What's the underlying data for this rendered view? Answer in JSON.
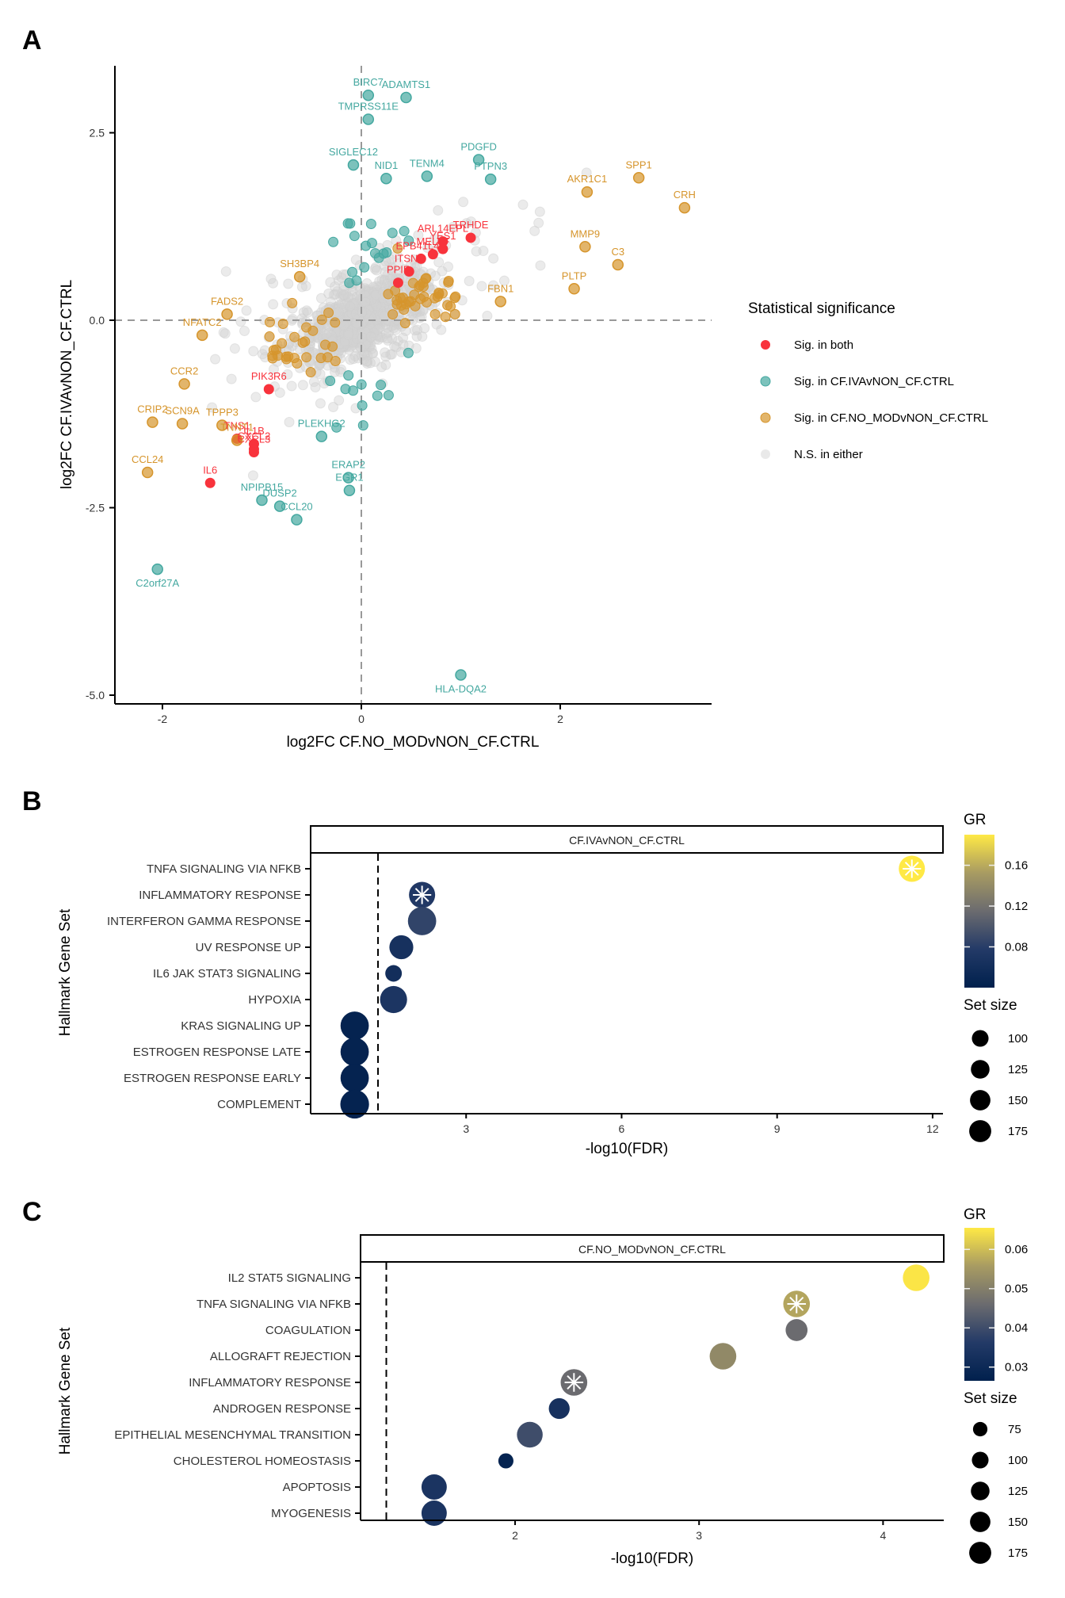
{
  "figure": {
    "panel_letters": [
      "A",
      "B",
      "C"
    ]
  },
  "colors": {
    "sig_both": "#F8333C",
    "sig_iva": "#44A8A0",
    "sig_nomod": "#D6952C",
    "ns": "#D3D3D3",
    "gr_low": "#00204D",
    "gr_mid": "#7C7B78",
    "gr_high": "#FFE945"
  },
  "chart_data": [
    {
      "id": "panel-a",
      "type": "scatter",
      "title": "",
      "xlabel": "log2FC CF.NO_MODvNON_CF.CTRL",
      "ylabel": "log2FC CF.IVAvNON_CF.CTRL",
      "xlim": [
        -2.5,
        3.5
      ],
      "ylim": [
        -5.1,
        3.4
      ],
      "xticks": [
        -2,
        0,
        2
      ],
      "xtick_labels": [
        "-2",
        "0",
        "2"
      ],
      "yticks": [
        2.5,
        0.0,
        -2.5,
        -5.0
      ],
      "ytick_labels": [
        "2.5",
        "0.0",
        "-2.5",
        "-5.0"
      ],
      "reference_lines": {
        "x": 0,
        "y": 0,
        "style": "dashed"
      },
      "grid": false,
      "legend": {
        "title": "Statistical significance",
        "position": "right",
        "entries": [
          {
            "key": "both",
            "label": "Sig. in both"
          },
          {
            "key": "iva",
            "label": "Sig. in CF.IVAvNON_CF.CTRL"
          },
          {
            "key": "nomod",
            "label": "Sig. in CF.NO_MODvNON_CF.CTRL"
          },
          {
            "key": "ns",
            "label": "N.S. in either"
          }
        ]
      },
      "labeled_points": [
        {
          "gene": "BIRC7",
          "x": 0.07,
          "y": 3.0,
          "group": "iva"
        },
        {
          "gene": "ADAMTS1",
          "x": 0.45,
          "y": 2.97,
          "group": "iva"
        },
        {
          "gene": "TMPRSS11E",
          "x": 0.07,
          "y": 2.68,
          "group": "iva"
        },
        {
          "gene": "SIGLEC12",
          "x": -0.08,
          "y": 2.07,
          "group": "iva"
        },
        {
          "gene": "NID1",
          "x": 0.25,
          "y": 1.89,
          "group": "iva"
        },
        {
          "gene": "TENM4",
          "x": 0.66,
          "y": 1.92,
          "group": "iva"
        },
        {
          "gene": "PDGFD",
          "x": 1.18,
          "y": 2.14,
          "group": "iva"
        },
        {
          "gene": "PTPN3",
          "x": 1.3,
          "y": 1.88,
          "group": "iva"
        },
        {
          "gene": "SPP1",
          "x": 2.79,
          "y": 1.9,
          "group": "nomod"
        },
        {
          "gene": "CRH",
          "x": 3.25,
          "y": 1.5,
          "group": "nomod"
        },
        {
          "gene": "AKR1C1",
          "x": 2.27,
          "y": 1.71,
          "group": "nomod"
        },
        {
          "gene": "MMP9",
          "x": 2.25,
          "y": 0.98,
          "group": "nomod"
        },
        {
          "gene": "C3",
          "x": 2.58,
          "y": 0.74,
          "group": "nomod"
        },
        {
          "gene": "PLTP",
          "x": 2.14,
          "y": 0.42,
          "group": "nomod"
        },
        {
          "gene": "FBN1",
          "x": 1.4,
          "y": 0.25,
          "group": "nomod"
        },
        {
          "gene": "ARL14EPL",
          "x": 0.82,
          "y": 1.05,
          "group": "both"
        },
        {
          "gene": "TRHDE",
          "x": 1.1,
          "y": 1.1,
          "group": "both"
        },
        {
          "gene": "EPB41L4A",
          "x": 0.6,
          "y": 0.82,
          "group": "both"
        },
        {
          "gene": "YES1",
          "x": 0.82,
          "y": 0.95,
          "group": "both"
        },
        {
          "gene": "ITSN1",
          "x": 0.48,
          "y": 0.65,
          "group": "both"
        },
        {
          "gene": "MELTF",
          "x": 0.72,
          "y": 0.88,
          "group": "both"
        },
        {
          "gene": "PPIF",
          "x": 0.37,
          "y": 0.5,
          "group": "both"
        },
        {
          "gene": "SH3BP4",
          "x": -0.62,
          "y": 0.58,
          "group": "nomod"
        },
        {
          "gene": "FADS2",
          "x": -1.35,
          "y": 0.08,
          "group": "nomod"
        },
        {
          "gene": "NFATC2",
          "x": -1.6,
          "y": -0.2,
          "group": "nomod"
        },
        {
          "gene": "CCR2",
          "x": -1.78,
          "y": -0.85,
          "group": "nomod"
        },
        {
          "gene": "PIK3R6",
          "x": -0.93,
          "y": -0.92,
          "group": "both"
        },
        {
          "gene": "SCN9A",
          "x": -1.8,
          "y": -1.38,
          "group": "nomod"
        },
        {
          "gene": "TPPP3",
          "x": -1.4,
          "y": -1.4,
          "group": "nomod"
        },
        {
          "gene": "CRIP2",
          "x": -2.1,
          "y": -1.36,
          "group": "nomod"
        },
        {
          "gene": "TNS1",
          "x": -1.25,
          "y": -1.58,
          "group": "both"
        },
        {
          "gene": "TNNT1",
          "x": -1.25,
          "y": -1.6,
          "group": "nomod"
        },
        {
          "gene": "IL1B",
          "x": -1.08,
          "y": -1.65,
          "group": "both"
        },
        {
          "gene": "CXCL2",
          "x": -1.08,
          "y": -1.72,
          "group": "both"
        },
        {
          "gene": "CXCL3",
          "x": -1.08,
          "y": -1.76,
          "group": "both"
        },
        {
          "gene": "PLEKHG2",
          "x": -0.4,
          "y": -1.55,
          "group": "iva"
        },
        {
          "gene": "CCL24",
          "x": -2.15,
          "y": -2.03,
          "group": "nomod"
        },
        {
          "gene": "ERAP2",
          "x": -0.13,
          "y": -2.1,
          "group": "iva"
        },
        {
          "gene": "IL6",
          "x": -1.52,
          "y": -2.17,
          "group": "both"
        },
        {
          "gene": "NPIPB15",
          "x": -1.0,
          "y": -2.4,
          "group": "iva"
        },
        {
          "gene": "DUSP2",
          "x": -0.82,
          "y": -2.48,
          "group": "iva"
        },
        {
          "gene": "EGR1",
          "x": -0.12,
          "y": -2.27,
          "group": "iva"
        },
        {
          "gene": "CCL20",
          "x": -0.65,
          "y": -2.66,
          "group": "iva"
        },
        {
          "gene": "C2orf27A",
          "x": -2.05,
          "y": -3.32,
          "group": "iva"
        },
        {
          "gene": "HLA-DQA2",
          "x": 1.0,
          "y": -4.73,
          "group": "iva"
        }
      ]
    },
    {
      "id": "panel-b",
      "type": "scatter",
      "subtype": "dot-plot",
      "facet_strip": "CF.IVAvNON_CF.CTRL",
      "xlabel": "-log10(FDR)",
      "ylabel": "Hallmark Gene Set",
      "xlim": [
        0,
        12.2
      ],
      "xticks": [
        3,
        6,
        9,
        12
      ],
      "xtick_labels": [
        "3",
        "6",
        "9",
        "12"
      ],
      "threshold_line": 1.3,
      "color_legend": {
        "title": "GR",
        "range": [
          0.04,
          0.19
        ],
        "ticks": [
          0.08,
          0.12,
          0.16
        ],
        "tick_labels": [
          "0.08",
          "0.12",
          "0.16"
        ]
      },
      "size_legend": {
        "title": "Set size",
        "values": [
          100,
          125,
          150,
          175
        ],
        "labels": [
          "100",
          "125",
          "150",
          "175"
        ]
      },
      "categories": [
        "TNFA SIGNALING VIA NFKB",
        "INFLAMMATORY RESPONSE",
        "INTERFERON GAMMA RESPONSE",
        "UV RESPONSE UP",
        "IL6 JAK STAT3 SIGNALING",
        "HYPOXIA",
        "KRAS SIGNALING UP",
        "ESTROGEN RESPONSE LATE",
        "ESTROGEN RESPONSE EARLY",
        "COMPLEMENT"
      ],
      "points": [
        {
          "set": "TNFA SIGNALING VIA NFKB",
          "neglog10fdr": 11.6,
          "gr": 0.19,
          "size": 150,
          "starred": true
        },
        {
          "set": "INFLAMMATORY RESPONSE",
          "neglog10fdr": 2.15,
          "gr": 0.075,
          "size": 150,
          "starred": true
        },
        {
          "set": "INTERFERON GAMMA RESPONSE",
          "neglog10fdr": 2.15,
          "gr": 0.085,
          "size": 175,
          "starred": false
        },
        {
          "set": "UV RESPONSE UP",
          "neglog10fdr": 1.75,
          "gr": 0.065,
          "size": 125,
          "starred": false
        },
        {
          "set": "IL6 JAK STAT3 SIGNALING",
          "neglog10fdr": 1.6,
          "gr": 0.06,
          "size": 60,
          "starred": false
        },
        {
          "set": "HYPOXIA",
          "neglog10fdr": 1.6,
          "gr": 0.07,
          "size": 160,
          "starred": false
        },
        {
          "set": "KRAS SIGNALING UP",
          "neglog10fdr": 0.85,
          "gr": 0.045,
          "size": 175,
          "starred": false
        },
        {
          "set": "ESTROGEN RESPONSE LATE",
          "neglog10fdr": 0.85,
          "gr": 0.045,
          "size": 175,
          "starred": false
        },
        {
          "set": "ESTROGEN RESPONSE EARLY",
          "neglog10fdr": 0.85,
          "gr": 0.045,
          "size": 175,
          "starred": false
        },
        {
          "set": "COMPLEMENT",
          "neglog10fdr": 0.85,
          "gr": 0.045,
          "size": 180,
          "starred": false
        }
      ]
    },
    {
      "id": "panel-c",
      "type": "scatter",
      "subtype": "dot-plot",
      "facet_strip": "CF.NO_MODvNON_CF.CTRL",
      "xlabel": "-log10(FDR)",
      "ylabel": "Hallmark Gene Set",
      "xlim": [
        1.16,
        4.33
      ],
      "xticks": [
        2,
        3,
        4
      ],
      "xtick_labels": [
        "2",
        "3",
        "4"
      ],
      "threshold_line": 1.3,
      "color_legend": {
        "title": "GR",
        "range": [
          0.0265,
          0.0655
        ],
        "ticks": [
          0.03,
          0.04,
          0.05,
          0.06
        ],
        "tick_labels": [
          "0.03",
          "0.04",
          "0.05",
          "0.06"
        ]
      },
      "size_legend": {
        "title": "Set size",
        "values": [
          75,
          100,
          125,
          150,
          175
        ],
        "labels": [
          "75",
          "100",
          "125",
          "150",
          "175"
        ]
      },
      "categories": [
        "IL2 STAT5 SIGNALING",
        "TNFA SIGNALING VIA NFKB",
        "COAGULATION",
        "ALLOGRAFT REJECTION",
        "INFLAMMATORY RESPONSE",
        "ANDROGEN RESPONSE",
        "EPITHELIAL MESENCHYMAL TRANSITION",
        "CHOLESTEROL HOMEOSTASIS",
        "APOPTOSIS",
        "MYOGENESIS"
      ],
      "points": [
        {
          "set": "IL2 STAT5 SIGNALING",
          "neglog10fdr": 4.18,
          "gr": 0.065,
          "size": 155,
          "starred": false
        },
        {
          "set": "TNFA SIGNALING VIA NFKB",
          "neglog10fdr": 3.53,
          "gr": 0.057,
          "size": 155,
          "starred": true
        },
        {
          "set": "COAGULATION",
          "neglog10fdr": 3.53,
          "gr": 0.046,
          "size": 105,
          "starred": false
        },
        {
          "set": "ALLOGRAFT REJECTION",
          "neglog10fdr": 3.13,
          "gr": 0.052,
          "size": 155,
          "starred": false
        },
        {
          "set": "INFLAMMATORY RESPONSE",
          "neglog10fdr": 2.32,
          "gr": 0.046,
          "size": 155,
          "starred": true
        },
        {
          "set": "ANDROGEN RESPONSE",
          "neglog10fdr": 2.24,
          "gr": 0.033,
          "size": 95,
          "starred": false
        },
        {
          "set": "EPITHELIAL MESENCHYMAL TRANSITION",
          "neglog10fdr": 2.08,
          "gr": 0.04,
          "size": 145,
          "starred": false
        },
        {
          "set": "CHOLESTEROL HOMEOSTASIS",
          "neglog10fdr": 1.95,
          "gr": 0.028,
          "size": 50,
          "starred": false
        },
        {
          "set": "APOPTOSIS",
          "neglog10fdr": 1.56,
          "gr": 0.034,
          "size": 140,
          "starred": false
        },
        {
          "set": "MYOGENESIS",
          "neglog10fdr": 1.56,
          "gr": 0.034,
          "size": 140,
          "starred": false
        }
      ]
    }
  ]
}
